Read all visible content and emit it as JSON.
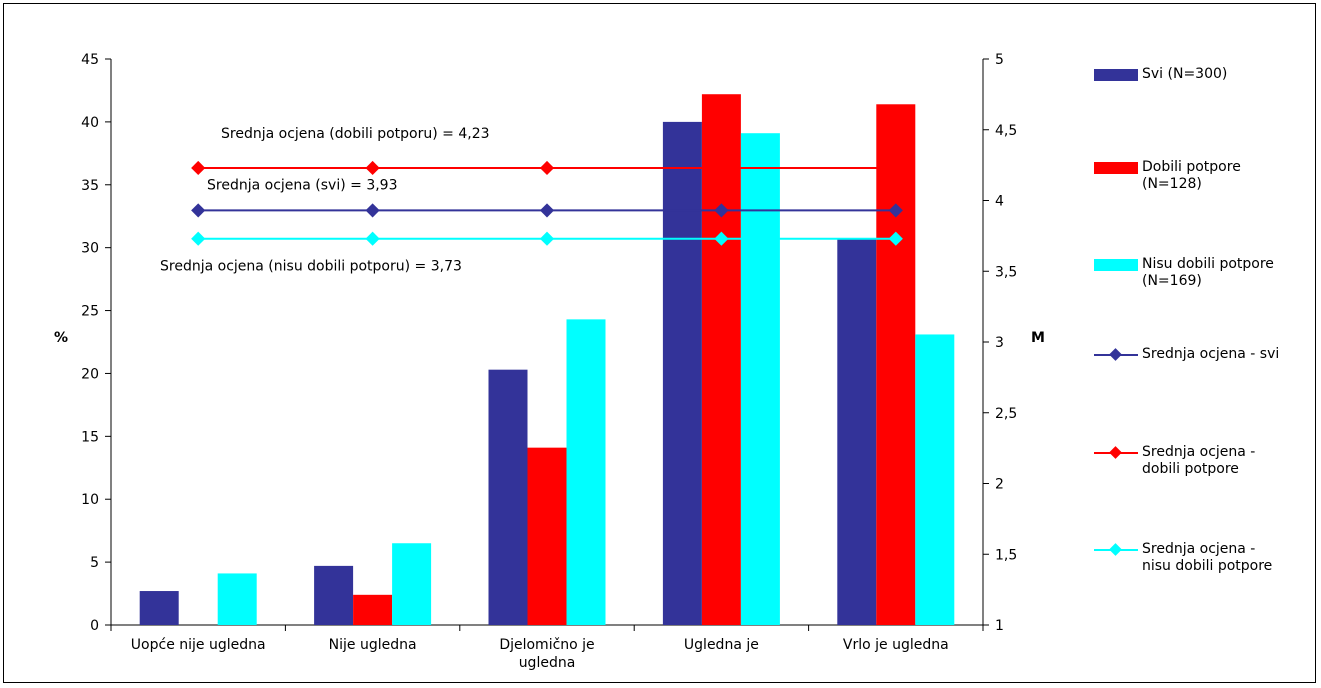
{
  "chart_data": {
    "type": "bar",
    "categories": [
      "Uopće nije ugledna",
      "Nije ugledna",
      "Djelomično je\nugledna",
      "Ugledna je",
      "Vrlo je ugledna"
    ],
    "series": [
      {
        "name": "Svi (N=300)",
        "type": "bar",
        "axis": "left",
        "values": [
          2.7,
          4.7,
          20.3,
          40.0,
          30.7
        ],
        "color": "#333399"
      },
      {
        "name": "Dobili potpore\n(N=128)",
        "type": "bar",
        "axis": "left",
        "values": [
          0,
          2.4,
          14.1,
          42.2,
          41.4
        ],
        "color": "#ff0000"
      },
      {
        "name": "Nisu dobili potpore\n(N=169)",
        "type": "bar",
        "axis": "left",
        "values": [
          4.1,
          6.5,
          24.3,
          39.1,
          23.1
        ],
        "color": "#00ffff"
      },
      {
        "name": "Srednja ocjena - svi",
        "type": "line",
        "axis": "right",
        "values": [
          3.93,
          3.93,
          3.93,
          3.93,
          3.93
        ],
        "color": "#333399"
      },
      {
        "name": "Srednja ocjena -\ndobili potpore",
        "type": "line",
        "axis": "right",
        "values": [
          4.23,
          4.23,
          4.23,
          4.23,
          4.23
        ],
        "color": "#ff0000"
      },
      {
        "name": "Srednja ocjena -\nnisu dobili potpore",
        "type": "line",
        "axis": "right",
        "values": [
          3.73,
          3.73,
          3.73,
          3.73,
          3.73
        ],
        "color": "#00ffff"
      }
    ],
    "y_left": {
      "label": "%",
      "ylim": [
        0,
        45
      ],
      "ticks": [
        "0",
        "5",
        "10",
        "15",
        "20",
        "25",
        "30",
        "35",
        "40",
        "45"
      ]
    },
    "y_right": {
      "label": "M",
      "ylim": [
        1,
        5
      ],
      "ticks": [
        "1",
        "1,5",
        "2",
        "2,5",
        "3",
        "3,5",
        "4",
        "4,5",
        "5"
      ]
    },
    "annotations": [
      {
        "text": "Srednja ocjena (dobili potporu) = 4,23",
        "series": 4
      },
      {
        "text": "Srednja ocjena (svi) = 3,93",
        "series": 3
      },
      {
        "text": "Srednja ocjena (nisu dobili potporu) = 3,73",
        "series": 5
      }
    ],
    "grid": false,
    "legend_position": "right"
  }
}
